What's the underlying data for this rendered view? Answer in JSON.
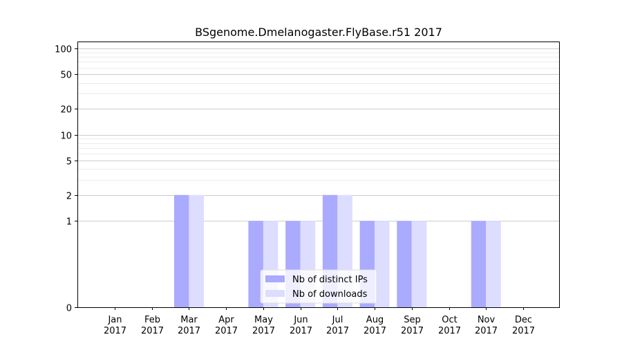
{
  "chart_data": {
    "type": "bar",
    "title": "BSgenome.Dmelanogaster.FlyBase.r51 2017",
    "xlabel": "",
    "ylabel": "",
    "categories": [
      [
        "Jan",
        "2017"
      ],
      [
        "Feb",
        "2017"
      ],
      [
        "Mar",
        "2017"
      ],
      [
        "Apr",
        "2017"
      ],
      [
        "May",
        "2017"
      ],
      [
        "Jun",
        "2017"
      ],
      [
        "Jul",
        "2017"
      ],
      [
        "Aug",
        "2017"
      ],
      [
        "Sep",
        "2017"
      ],
      [
        "Oct",
        "2017"
      ],
      [
        "Nov",
        "2017"
      ],
      [
        "Dec",
        "2017"
      ]
    ],
    "series": [
      {
        "name": "Nb of distinct IPs",
        "color": "#aaaaff",
        "values": [
          0,
          0,
          2,
          0,
          1,
          1,
          2,
          1,
          1,
          0,
          1,
          0
        ]
      },
      {
        "name": "Nb of downloads",
        "color": "#ddddff",
        "values": [
          0,
          0,
          2,
          0,
          1,
          1,
          2,
          1,
          1,
          0,
          1,
          0
        ]
      }
    ],
    "yscale": "symlog",
    "ylim": [
      0,
      120
    ],
    "yticks": [
      0,
      1,
      2,
      5,
      10,
      20,
      50,
      100
    ],
    "grid": true,
    "legend_position": "bottom-center"
  }
}
